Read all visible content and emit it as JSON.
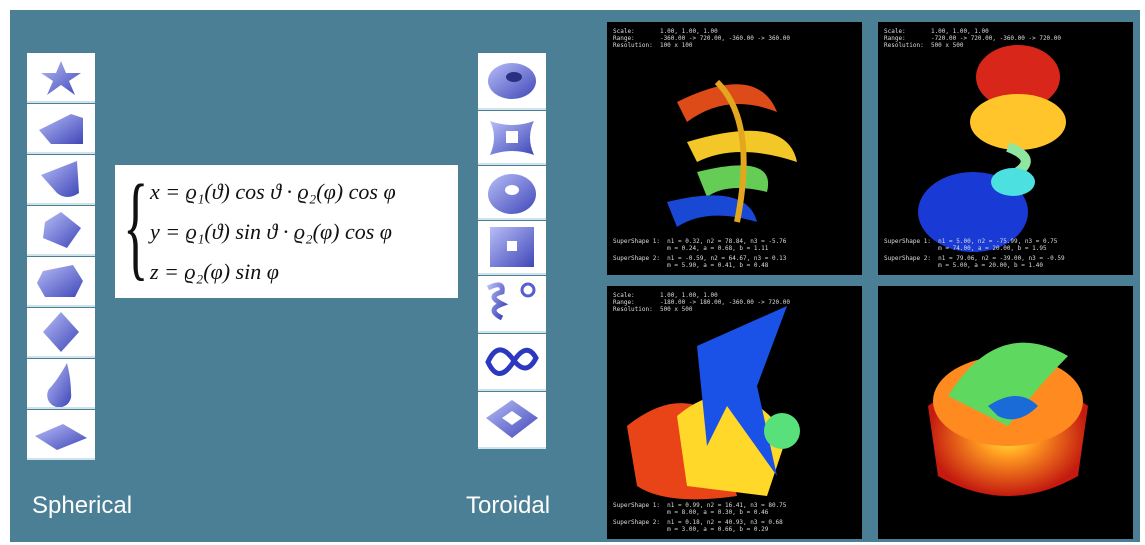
{
  "labels": {
    "spherical": "Spherical",
    "toroidal": "Toroidal"
  },
  "formula": [
    "x = ϱ₁(ϑ) cos ϑ · ϱ₂(φ) cos φ",
    "y = ϱ₁(ϑ) sin ϑ · ϱ₂(φ) cos φ",
    "z = ϱ₂(φ) sin φ"
  ],
  "panels": [
    {
      "header": [
        "Scale:       1.00, 1.00, 1.00",
        "Range:       -360.00 -> 720.00, -360.00 -> 360.00",
        "Resolution:  100 x 100"
      ],
      "footer": [
        "SuperShape 1:  n1 = 0.32, n2 = 78.84, n3 = -5.76",
        "               m = 0.24, a = 0.68, b = 1.11",
        "SuperShape 2:  n1 = -0.59, n2 = 64.67, n3 = 0.13",
        "               m = 5.90, a = 0.41, b = 0.48"
      ]
    },
    {
      "header": [
        "Scale:       1.00, 1.00, 1.00",
        "Range:       -720.00 -> 720.00, -360.00 -> 720.00",
        "Resolution:  500 x 500"
      ],
      "footer": [
        "SuperShape 1:  n1 = 5.00, n2 = -75.99, n3 = 0.75",
        "               m = 74.00, a = 20.00, b = 1.95",
        "SuperShape 2:  n1 = 79.06, n2 = -39.00, n3 = -0.59",
        "               m = 5.00, a = 20.00, b = 1.40"
      ]
    },
    {
      "header": [
        "Scale:       1.00, 1.00, 1.00",
        "Range:       -180.00 -> 180.00, -360.00 -> 720.00",
        "Resolution:  500 x 500"
      ],
      "footer": [
        "SuperShape 1:  n1 = 0.99, n2 = 16.41, n3 = 80.75",
        "               m = 8.00, a = 0.30, b = 0.46",
        "SuperShape 2:  n1 = 0.18, n2 = 40.93, n3 = 0.68",
        "               m = 3.00, a = 0.66, b = 0.29"
      ]
    },
    {
      "header": [],
      "footer": []
    }
  ]
}
